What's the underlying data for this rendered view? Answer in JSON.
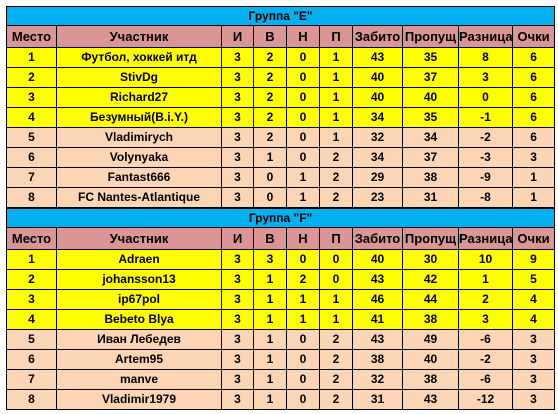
{
  "headers": [
    "Место",
    "Участник",
    "И",
    "В",
    "Н",
    "П",
    "Забито",
    "Пропущ",
    "Разница",
    "Очки"
  ],
  "groups": [
    {
      "title": "Группа \"E\"",
      "rows": [
        {
          "pos": "1",
          "name": "Футбол, хоккей итд",
          "i": "3",
          "v": "2",
          "n": "0",
          "p": "1",
          "scored": "43",
          "missed": "35",
          "diff": "8",
          "pts": "6",
          "style": "yellow"
        },
        {
          "pos": "2",
          "name": "StivDg",
          "i": "3",
          "v": "2",
          "n": "0",
          "p": "1",
          "scored": "40",
          "missed": "37",
          "diff": "3",
          "pts": "6",
          "style": "yellow"
        },
        {
          "pos": "3",
          "name": "Richard27",
          "i": "3",
          "v": "2",
          "n": "0",
          "p": "1",
          "scored": "40",
          "missed": "40",
          "diff": "0",
          "pts": "6",
          "style": "yellow"
        },
        {
          "pos": "4",
          "name": "Безумный(B.i.Y.)",
          "i": "3",
          "v": "2",
          "n": "0",
          "p": "1",
          "scored": "34",
          "missed": "35",
          "diff": "-1",
          "pts": "6",
          "style": "yellow"
        },
        {
          "pos": "5",
          "name": "Vladimirych",
          "i": "3",
          "v": "2",
          "n": "0",
          "p": "1",
          "scored": "32",
          "missed": "34",
          "diff": "-2",
          "pts": "6",
          "style": "peach"
        },
        {
          "pos": "6",
          "name": "Volynyaka",
          "i": "3",
          "v": "1",
          "n": "0",
          "p": "2",
          "scored": "34",
          "missed": "37",
          "diff": "-3",
          "pts": "3",
          "style": "peach"
        },
        {
          "pos": "7",
          "name": "Fantast666",
          "i": "3",
          "v": "0",
          "n": "1",
          "p": "2",
          "scored": "29",
          "missed": "38",
          "diff": "-9",
          "pts": "1",
          "style": "peach"
        },
        {
          "pos": "8",
          "name": "FC Nantes-Atlantique",
          "i": "3",
          "v": "0",
          "n": "1",
          "p": "2",
          "scored": "23",
          "missed": "31",
          "diff": "-8",
          "pts": "1",
          "style": "peach"
        }
      ]
    },
    {
      "title": "Группа \"F\"",
      "rows": [
        {
          "pos": "1",
          "name": "Adraen",
          "i": "3",
          "v": "3",
          "n": "0",
          "p": "0",
          "scored": "40",
          "missed": "30",
          "diff": "10",
          "pts": "9",
          "style": "yellow"
        },
        {
          "pos": "2",
          "name": "johansson13",
          "i": "3",
          "v": "1",
          "n": "2",
          "p": "0",
          "scored": "43",
          "missed": "42",
          "diff": "1",
          "pts": "5",
          "style": "yellow"
        },
        {
          "pos": "3",
          "name": "ip67pol",
          "i": "3",
          "v": "1",
          "n": "1",
          "p": "1",
          "scored": "46",
          "missed": "44",
          "diff": "2",
          "pts": "4",
          "style": "yellow"
        },
        {
          "pos": "4",
          "name": "Bebeto Blya",
          "i": "3",
          "v": "1",
          "n": "1",
          "p": "1",
          "scored": "41",
          "missed": "38",
          "diff": "3",
          "pts": "4",
          "style": "yellow"
        },
        {
          "pos": "5",
          "name": "Иван Лебедев",
          "i": "3",
          "v": "1",
          "n": "0",
          "p": "2",
          "scored": "43",
          "missed": "49",
          "diff": "-6",
          "pts": "3",
          "style": "peach"
        },
        {
          "pos": "6",
          "name": "Artem95",
          "i": "3",
          "v": "1",
          "n": "0",
          "p": "2",
          "scored": "38",
          "missed": "40",
          "diff": "-2",
          "pts": "3",
          "style": "peach"
        },
        {
          "pos": "7",
          "name": "manve",
          "i": "3",
          "v": "1",
          "n": "0",
          "p": "2",
          "scored": "32",
          "missed": "38",
          "diff": "-6",
          "pts": "3",
          "style": "peach"
        },
        {
          "pos": "8",
          "name": "Vladimir1979",
          "i": "3",
          "v": "1",
          "n": "0",
          "p": "2",
          "scored": "31",
          "missed": "43",
          "diff": "-12",
          "pts": "3",
          "style": "peach"
        }
      ]
    }
  ]
}
